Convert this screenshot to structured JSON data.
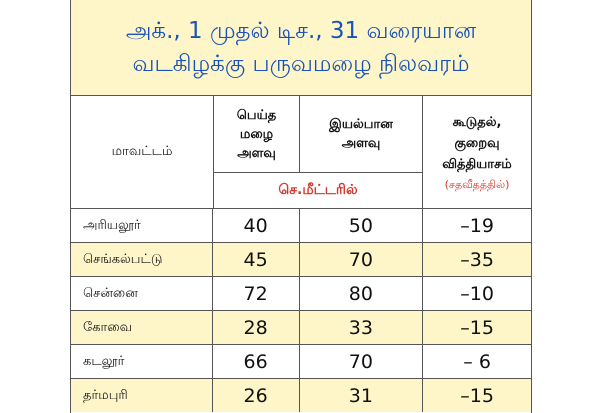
{
  "title": {
    "line1": "அக்., 1 முதல் டிச., 31 வரையான",
    "line2": "வடகிழக்கு பருவமழை நிலவரம்"
  },
  "header": {
    "district": "மாவட்டம்",
    "actual": [
      "பெய்த",
      "மழை",
      "அளவு"
    ],
    "normal": [
      "இயல்பான",
      "அளவு"
    ],
    "difference": [
      "கூடுதல்,",
      "குறைவு",
      "வித்தியாசம்"
    ],
    "difference_unit": "(சதவீதத்தில்)",
    "unit": "செ.மீட்டரில்"
  },
  "rows": [
    {
      "district": "அரியலூர்",
      "actual": "40",
      "normal": "50",
      "diff": "–19"
    },
    {
      "district": "செங்கல்பட்டு",
      "actual": "45",
      "normal": "70",
      "diff": "–35"
    },
    {
      "district": "சென்னை",
      "actual": "72",
      "normal": "80",
      "diff": "–10"
    },
    {
      "district": "கோவை",
      "actual": "28",
      "normal": "33",
      "diff": "–15"
    },
    {
      "district": "கடலூர்",
      "actual": "66",
      "normal": "70",
      "diff": "– 6"
    },
    {
      "district": "தர்மபுரி",
      "actual": "26",
      "normal": "31",
      "diff": "–15"
    }
  ],
  "colors": {
    "title_text": "#1a53b8",
    "highlight_bg": "#fef6c8",
    "unit_text": "#d23a2f"
  }
}
